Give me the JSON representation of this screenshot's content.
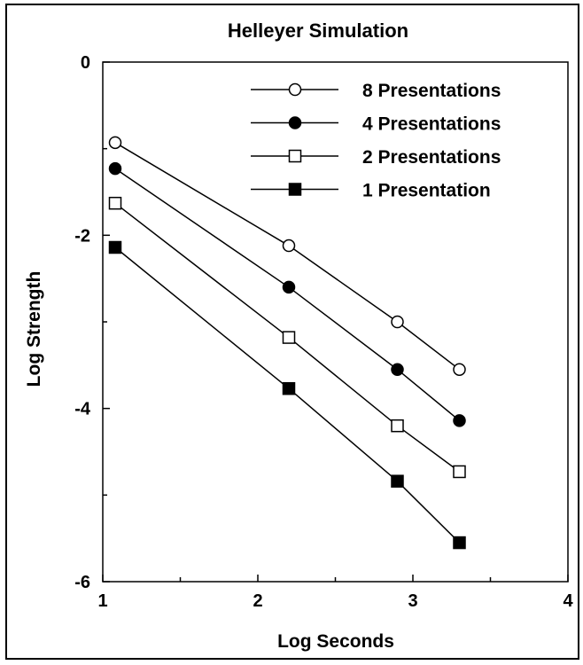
{
  "chart_data": {
    "type": "line",
    "title": "Helleyer  Simulation",
    "xlabel": "Log Seconds",
    "ylabel": "Log Strength",
    "xlim": [
      1,
      4
    ],
    "ylim": [
      -6,
      0
    ],
    "x_ticks": [
      1,
      2,
      3,
      4
    ],
    "y_ticks": [
      0,
      -2,
      -4,
      -6
    ],
    "x_tick_labels": [
      "1",
      "2",
      "3",
      "4"
    ],
    "y_tick_labels": [
      "0",
      "-2",
      "-4",
      "-6"
    ],
    "grid": false,
    "legend_position": "top-right",
    "x": [
      1.08,
      2.2,
      2.9,
      3.3
    ],
    "series": [
      {
        "name": "8 Presentations",
        "marker": "open-circle",
        "values": [
          -0.93,
          -2.12,
          -3.0,
          -3.55
        ]
      },
      {
        "name": "4 Presentations",
        "marker": "filled-circle",
        "values": [
          -1.23,
          -2.6,
          -3.55,
          -4.14
        ]
      },
      {
        "name": "2 Presentations",
        "marker": "open-square",
        "values": [
          -1.63,
          -3.18,
          -4.2,
          -4.73
        ]
      },
      {
        "name": "1 Presentation",
        "marker": "filled-square",
        "values": [
          -2.14,
          -3.77,
          -4.84,
          -5.55
        ]
      }
    ]
  }
}
